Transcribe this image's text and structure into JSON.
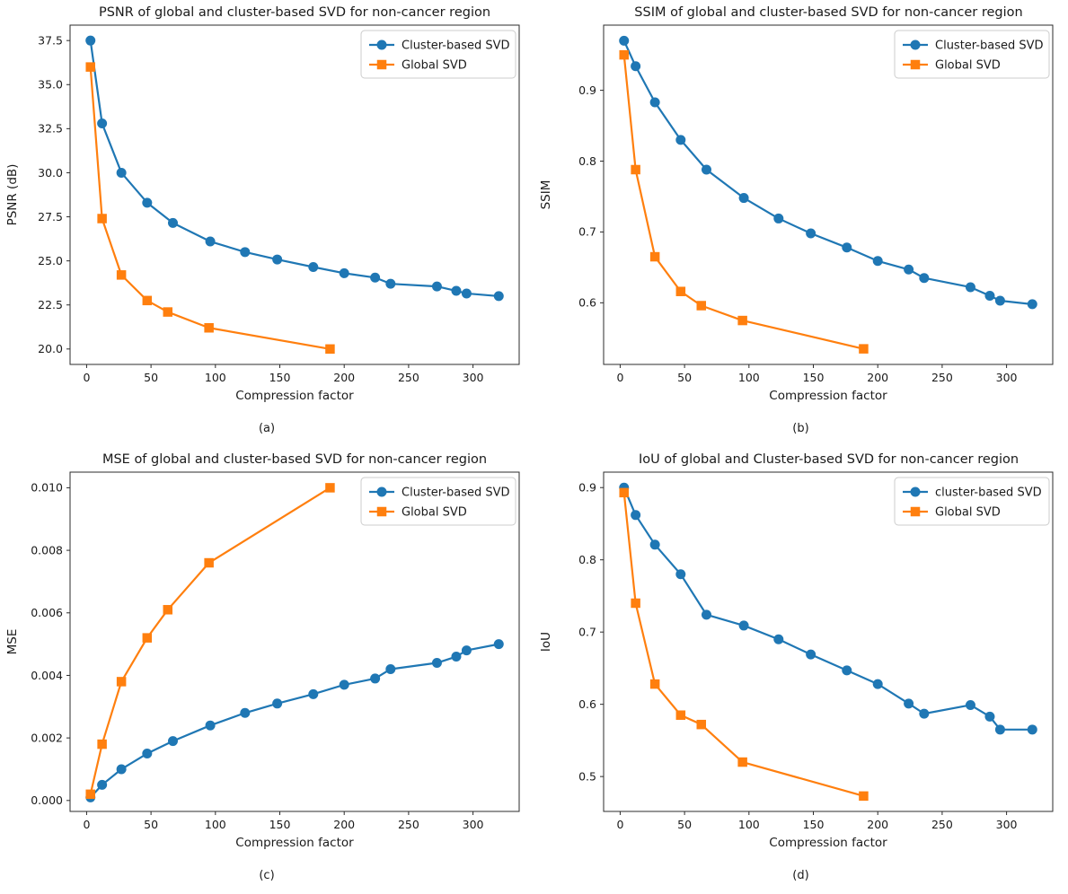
{
  "figure": {
    "background": "#ffffff",
    "axis_color": "#2b2b2b",
    "legend_edge_color": "#cccccc"
  },
  "chart_data": [
    {
      "id": "psnr",
      "type": "line",
      "title": "PSNR of global and cluster-based SVD for non-cancer region",
      "xlabel": "Compression factor",
      "ylabel": "PSNR (dB)",
      "caption": "(a)",
      "xlim": [
        -12.85,
        335.85
      ],
      "ylim": [
        19.125,
        38.375
      ],
      "xticks": [
        0,
        50,
        100,
        150,
        200,
        250,
        300
      ],
      "xtick_labels": [
        "0",
        "50",
        "100",
        "150",
        "200",
        "250",
        "300"
      ],
      "yticks": [
        20.0,
        22.5,
        25.0,
        27.5,
        30.0,
        32.5,
        35.0,
        37.5
      ],
      "ytick_labels": [
        "20.0",
        "22.5",
        "25.0",
        "27.5",
        "30.0",
        "32.5",
        "35.0",
        "37.5"
      ],
      "grid": false,
      "legend_position": "upper right",
      "series": [
        {
          "name": "Cluster-based SVD",
          "color": "#1f77b4",
          "marker": "circle",
          "x": [
            3,
            12,
            27,
            47,
            67,
            96,
            123,
            148,
            176,
            200,
            224,
            236,
            272,
            287,
            295,
            320
          ],
          "y": [
            37.5,
            32.8,
            30.0,
            28.3,
            27.15,
            26.1,
            25.5,
            25.08,
            24.65,
            24.3,
            24.05,
            23.7,
            23.55,
            23.3,
            23.15,
            23.0
          ]
        },
        {
          "name": "Global SVD",
          "color": "#ff7f0e",
          "marker": "square",
          "x": [
            3,
            12,
            27,
            47,
            63,
            95,
            189
          ],
          "y": [
            36.0,
            27.4,
            24.2,
            22.75,
            22.1,
            21.2,
            20.0
          ]
        }
      ]
    },
    {
      "id": "ssim",
      "type": "line",
      "title": "SSIM of global and cluster-based SVD for non-cancer region",
      "xlabel": "Compression factor",
      "ylabel": "SSIM",
      "caption": "(b)",
      "xlim": [
        -12.85,
        335.85
      ],
      "ylim": [
        0.513,
        0.992
      ],
      "xticks": [
        0,
        50,
        100,
        150,
        200,
        250,
        300
      ],
      "xtick_labels": [
        "0",
        "50",
        "100",
        "150",
        "200",
        "250",
        "300"
      ],
      "yticks": [
        0.6,
        0.7,
        0.8,
        0.9
      ],
      "ytick_labels": [
        "0.6",
        "0.7",
        "0.8",
        "0.9"
      ],
      "grid": false,
      "legend_position": "upper right",
      "series": [
        {
          "name": "Cluster-based SVD",
          "color": "#1f77b4",
          "marker": "circle",
          "x": [
            3,
            12,
            27,
            47,
            67,
            96,
            123,
            148,
            176,
            200,
            224,
            236,
            272,
            287,
            295,
            320
          ],
          "y": [
            0.97,
            0.934,
            0.883,
            0.83,
            0.788,
            0.748,
            0.719,
            0.698,
            0.678,
            0.659,
            0.647,
            0.635,
            0.622,
            0.61,
            0.603,
            0.598
          ]
        },
        {
          "name": "Global SVD",
          "color": "#ff7f0e",
          "marker": "square",
          "x": [
            3,
            12,
            27,
            47,
            63,
            95,
            189
          ],
          "y": [
            0.95,
            0.788,
            0.665,
            0.616,
            0.596,
            0.575,
            0.535
          ]
        }
      ]
    },
    {
      "id": "mse",
      "type": "line",
      "title": "MSE of global and cluster-based SVD for non-cancer region",
      "xlabel": "Compression factor",
      "ylabel": "MSE",
      "caption": "(c)",
      "xlim": [
        -12.85,
        335.85
      ],
      "ylim": [
        -0.00035,
        0.0105
      ],
      "xticks": [
        0,
        50,
        100,
        150,
        200,
        250,
        300
      ],
      "xtick_labels": [
        "0",
        "50",
        "100",
        "150",
        "200",
        "250",
        "300"
      ],
      "yticks": [
        0.0,
        0.002,
        0.004,
        0.006,
        0.008,
        0.01
      ],
      "ytick_labels": [
        "0.000",
        "0.002",
        "0.004",
        "0.006",
        "0.008",
        "0.010"
      ],
      "grid": false,
      "legend_position": "upper right",
      "series": [
        {
          "name": "Cluster-based SVD",
          "color": "#1f77b4",
          "marker": "circle",
          "x": [
            3,
            12,
            27,
            47,
            67,
            96,
            123,
            148,
            176,
            200,
            224,
            236,
            272,
            287,
            295,
            320
          ],
          "y": [
            0.0001,
            0.0005,
            0.001,
            0.0015,
            0.0019,
            0.0024,
            0.0028,
            0.0031,
            0.0034,
            0.0037,
            0.0039,
            0.0042,
            0.0044,
            0.0046,
            0.0048,
            0.005
          ]
        },
        {
          "name": "Global SVD",
          "color": "#ff7f0e",
          "marker": "square",
          "x": [
            3,
            12,
            27,
            47,
            63,
            95,
            189
          ],
          "y": [
            0.0002,
            0.0018,
            0.0038,
            0.0052,
            0.0061,
            0.0076,
            0.01
          ]
        }
      ]
    },
    {
      "id": "iou",
      "type": "line",
      "title": "IoU of global and Cluster-based SVD for non-cancer region",
      "xlabel": "Compression factor",
      "ylabel": "IoU",
      "caption": "(d)",
      "xlim": [
        -12.85,
        335.85
      ],
      "ylim": [
        0.4517,
        0.9214
      ],
      "xticks": [
        0,
        50,
        100,
        150,
        200,
        250,
        300
      ],
      "xtick_labels": [
        "0",
        "50",
        "100",
        "150",
        "200",
        "250",
        "300"
      ],
      "yticks": [
        0.5,
        0.6,
        0.7,
        0.8,
        0.9
      ],
      "ytick_labels": [
        "0.5",
        "0.6",
        "0.7",
        "0.8",
        "0.9"
      ],
      "grid": false,
      "legend_position": "upper right",
      "series": [
        {
          "name": "cluster-based SVD",
          "color": "#1f77b4",
          "marker": "circle",
          "x": [
            3,
            12,
            27,
            47,
            67,
            96,
            123,
            148,
            176,
            200,
            224,
            236,
            272,
            287,
            295,
            320
          ],
          "y": [
            0.9,
            0.862,
            0.821,
            0.78,
            0.724,
            0.709,
            0.69,
            0.669,
            0.647,
            0.628,
            0.601,
            0.587,
            0.599,
            0.583,
            0.565,
            0.565
          ]
        },
        {
          "name": "Global SVD",
          "color": "#ff7f0e",
          "marker": "square",
          "x": [
            3,
            12,
            27,
            47,
            63,
            95,
            189
          ],
          "y": [
            0.893,
            0.74,
            0.628,
            0.585,
            0.572,
            0.52,
            0.473
          ]
        }
      ]
    }
  ]
}
